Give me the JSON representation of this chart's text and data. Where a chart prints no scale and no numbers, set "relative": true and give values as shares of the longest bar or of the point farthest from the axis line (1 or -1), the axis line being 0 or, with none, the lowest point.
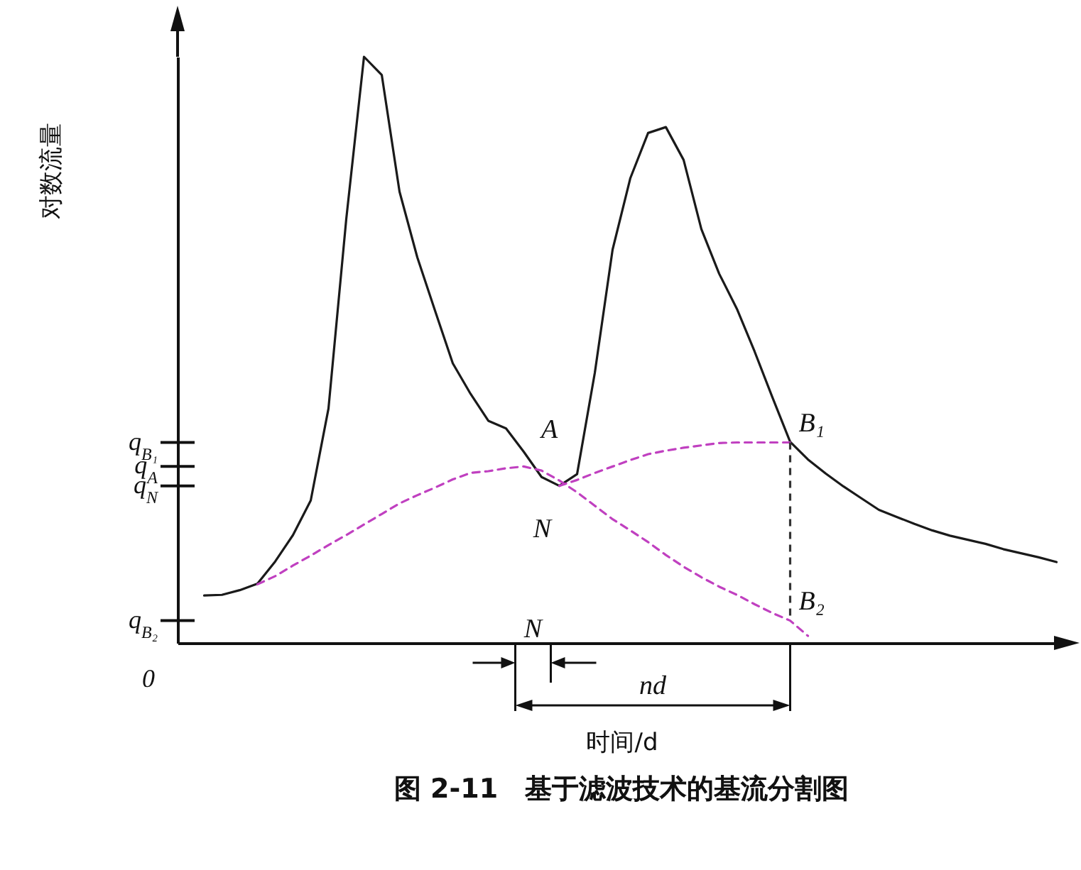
{
  "chart_data": {
    "type": "line",
    "relative": true,
    "title": "图 2-11　基于滤波技术的基流分割图",
    "xlabel": "时间/d",
    "ylabel": "对数流量",
    "categories": [
      null,
      null,
      null,
      null,
      null,
      null,
      null,
      null,
      null,
      null,
      null,
      null,
      null,
      null,
      null,
      null,
      null,
      null,
      null,
      null,
      null,
      null,
      null,
      null,
      null,
      null,
      null,
      null,
      null,
      null,
      null,
      null,
      null,
      null,
      null,
      null,
      null,
      null,
      null,
      null,
      null,
      null,
      null,
      null,
      null,
      null,
      null,
      null,
      null,
      null
    ],
    "grid": false,
    "marker": "none",
    "series": [
      {
        "color": "#1a1a1a",
        "line_style": "solid",
        "values": [
          null,
          0.081,
          0.082,
          0.09,
          0.101,
          0.139,
          0.184,
          0.243,
          0.4,
          0.723,
          1.0,
          0.969,
          0.77,
          0.658,
          0.567,
          0.477,
          0.425,
          0.379,
          0.366,
          0.326,
          0.283,
          0.268,
          0.288,
          0.461,
          0.671,
          0.793,
          0.87,
          0.88,
          0.824,
          0.706,
          0.63,
          0.57,
          0.497,
          0.419,
          0.343,
          0.313,
          0.289,
          0.267,
          0.247,
          0.227,
          0.215,
          0.203,
          0.192,
          0.183,
          0.176,
          0.169,
          0.16,
          0.153,
          0.146,
          0.138
        ]
      },
      {
        "color": "#c040c0",
        "line_style": "dashed",
        "values": [
          null,
          null,
          null,
          null,
          0.1,
          0.114,
          0.132,
          0.149,
          0.167,
          0.184,
          0.202,
          0.22,
          0.238,
          0.252,
          0.265,
          0.279,
          0.29,
          0.293,
          0.298,
          0.301,
          0.294,
          0.277,
          0.257,
          0.234,
          0.211,
          0.192,
          0.172,
          0.15,
          0.13,
          0.112,
          0.096,
          0.082,
          0.066,
          0.051,
          0.038,
          0.012,
          null,
          null,
          null,
          null,
          null,
          null,
          null,
          null,
          null,
          null,
          null,
          null,
          null,
          null
        ]
      },
      {
        "color": "#c040c0",
        "line_style": "dashed",
        "values": [
          null,
          null,
          null,
          null,
          null,
          null,
          null,
          null,
          null,
          null,
          null,
          null,
          null,
          null,
          null,
          null,
          null,
          null,
          null,
          null,
          null,
          0.268,
          0.278,
          0.29,
          0.301,
          0.312,
          0.322,
          0.328,
          0.333,
          0.337,
          0.341,
          0.342,
          0.342,
          0.342,
          0.342,
          null,
          null,
          null,
          null,
          null,
          null,
          null,
          null,
          null,
          null,
          null,
          null,
          null,
          null,
          null
        ]
      }
    ],
    "annotations": [
      "A",
      "N",
      "B₁",
      "B₂",
      "N",
      "nd",
      "q$_{B₁}$",
      "q$_{A}$",
      "q$_{N}$",
      "q$_{B₂}$",
      "0"
    ]
  }
}
